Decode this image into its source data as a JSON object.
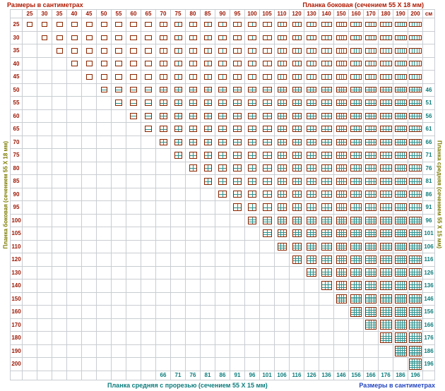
{
  "titles": {
    "top_left": "Размеры в сантиметрах",
    "top_right": "Планка боковая (сечением 55 Х 18 мм)",
    "left_vertical": "Планка боковая (сечением 55 Х 18 мм)",
    "right_vertical": "Планка средняя (сечением 55 Х 15 мм)",
    "bottom_left": "Планка средняя с прорезью (сечением 55 Х 15 мм)",
    "bottom_right": "Размеры в сантиметрах"
  },
  "unit_label": "см",
  "colors": {
    "top_title": "#b01800",
    "side_title": "#7c7c00",
    "bottom_left_title": "#0c7c7c",
    "bottom_right_title": "#2244c0",
    "header_number": "#9b1400",
    "side_number": "#9b1400",
    "middle_number": "#0c7c7c",
    "frame_border": "#8b2400",
    "divider_line": "#2a9090",
    "grid_line": "#c9cdd1"
  },
  "chart_data": {
    "type": "table",
    "title": "Таблица размеров рамок: планка боковая × планка боковая",
    "unit": "см",
    "column_sizes": [
      25,
      30,
      35,
      40,
      45,
      50,
      55,
      60,
      65,
      70,
      75,
      80,
      85,
      90,
      95,
      100,
      105,
      110,
      120,
      130,
      140,
      150,
      160,
      170,
      180,
      190,
      200
    ],
    "row_sizes": [
      25,
      30,
      35,
      40,
      45,
      50,
      55,
      60,
      65,
      70,
      75,
      80,
      85,
      90,
      95,
      100,
      105,
      110,
      120,
      130,
      140,
      150,
      160,
      170,
      180,
      190,
      200
    ],
    "cell_rule": "frame icon shown where column size >= row size; icon width/height proportional to sizes",
    "right_column": {
      "label": "Планка средняя (сечением 55 Х 15 мм)",
      "min_row_size": 50,
      "values": [
        46,
        51,
        56,
        61,
        66,
        71,
        76,
        81,
        86,
        91,
        96,
        101,
        106,
        116,
        126,
        136,
        146,
        156,
        166,
        176,
        186,
        196
      ]
    },
    "bottom_row": {
      "label": "Планка средняя с прорезью (сечением 55 Х 15 мм)",
      "min_col_size": 70,
      "values": [
        66,
        71,
        76,
        81,
        86,
        91,
        96,
        101,
        106,
        116,
        126,
        136,
        146,
        156,
        166,
        176,
        186,
        196
      ]
    },
    "vertical_divider_min_widths": [
      70,
      110,
      150,
      190
    ],
    "horizontal_divider_min_heights": [
      50,
      100,
      150,
      190
    ]
  }
}
